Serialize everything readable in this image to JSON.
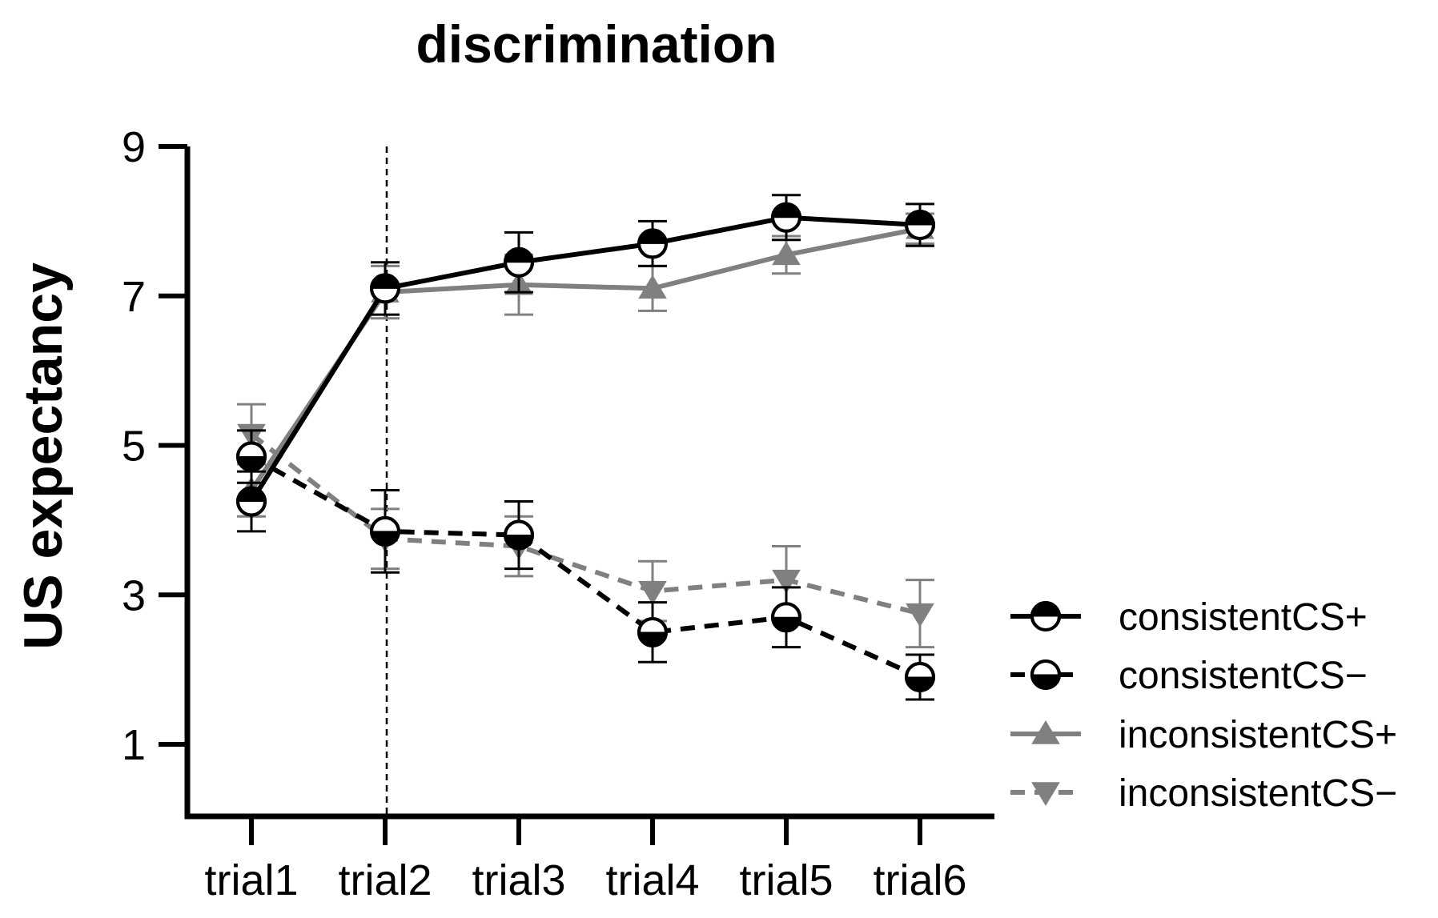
{
  "chart_data": {
    "type": "line",
    "title": "discrimination",
    "xlabel": "",
    "ylabel": "US expectancy",
    "categories": [
      "trial1",
      "trial2",
      "trial3",
      "trial4",
      "trial5",
      "trial6"
    ],
    "ylim": [
      0,
      9
    ],
    "yticks": [
      1,
      3,
      5,
      7,
      9
    ],
    "reference_line": {
      "category": "trial2",
      "style": "dotted"
    },
    "legend_position": "right",
    "series": [
      {
        "name": "consistentCS+",
        "color": "#000000",
        "line": "solid",
        "marker": "circle-top-filled",
        "values": [
          4.25,
          7.1,
          7.45,
          7.7,
          8.05,
          7.95
        ],
        "errors": [
          0.4,
          0.35,
          0.4,
          0.3,
          0.3,
          0.28
        ]
      },
      {
        "name": "consistentCS−",
        "color": "#000000",
        "line": "dashed",
        "marker": "circle-bottom-filled",
        "values": [
          4.85,
          3.85,
          3.8,
          2.5,
          2.7,
          1.9
        ],
        "errors": [
          0.35,
          0.55,
          0.45,
          0.4,
          0.4,
          0.3
        ]
      },
      {
        "name": "inconsistentCS+",
        "color": "#808080",
        "line": "solid",
        "marker": "triangle-up",
        "values": [
          4.4,
          7.05,
          7.15,
          7.1,
          7.55,
          7.9
        ],
        "errors": [
          0.35,
          0.35,
          0.4,
          0.3,
          0.25,
          0.2
        ]
      },
      {
        "name": "inconsistentCS−",
        "color": "#808080",
        "line": "dashed",
        "marker": "triangle-down",
        "values": [
          5.15,
          3.75,
          3.65,
          3.05,
          3.2,
          2.75
        ],
        "errors": [
          0.4,
          0.4,
          0.4,
          0.4,
          0.45,
          0.45
        ]
      }
    ]
  }
}
